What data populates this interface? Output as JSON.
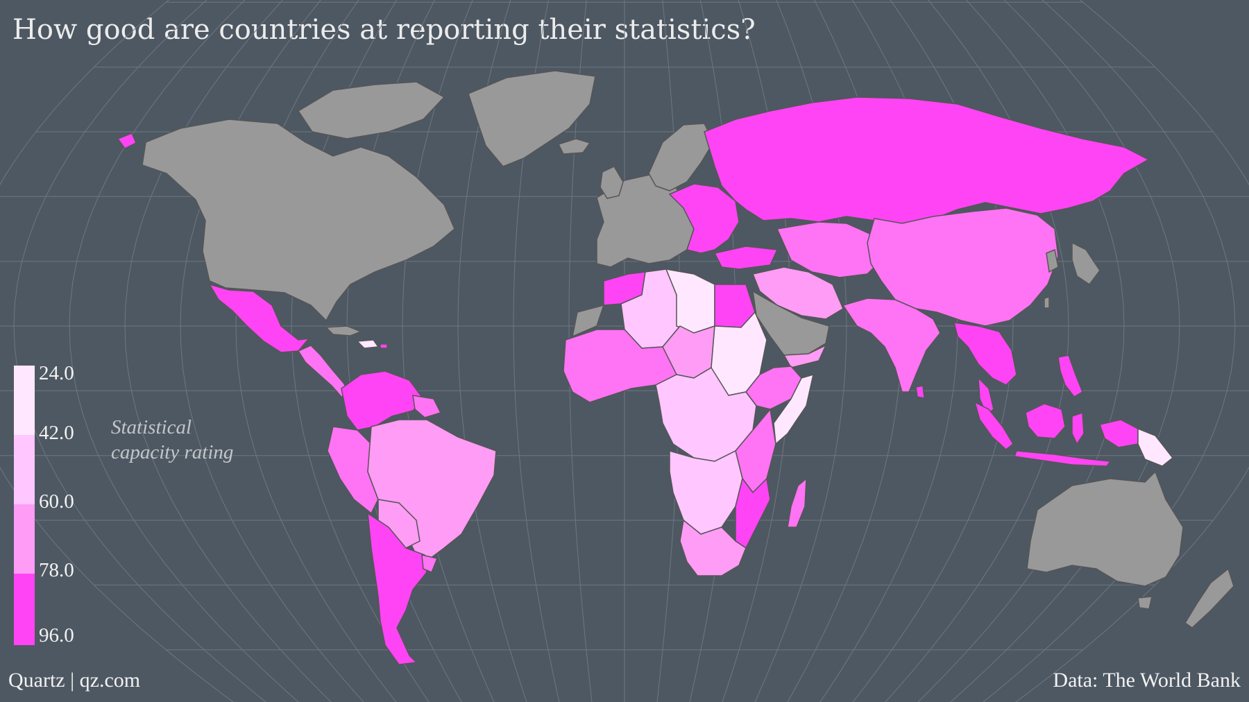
{
  "header": {
    "title": "How good are countries at reporting their statistics?"
  },
  "legend": {
    "title_line1": "Statistical",
    "title_line2": "capacity rating",
    "labels": [
      "24.0",
      "42.0",
      "60.0",
      "78.0",
      "96.0"
    ],
    "colors": [
      "#ffe8ff",
      "#ffc6ff",
      "#ff9cf5",
      "#ff73f5",
      "#ff44f5"
    ]
  },
  "footer": {
    "source_left": "Quartz | qz.com",
    "source_right": "Data: The World Bank"
  },
  "map": {
    "no_data_color": "#999999",
    "ocean_color": "#4e5863",
    "graticule_color": "#6f7780",
    "border_color": "#555555"
  }
}
